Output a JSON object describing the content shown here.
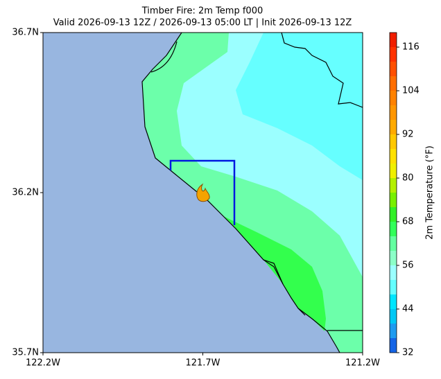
{
  "chart_data": {
    "type": "contour",
    "title": "Timber Fire: 2m Temp f000",
    "subtitle": "Valid 2026-09-13 12Z / 2026-09-13 05:00 LT | Init 2026-09-13 12Z",
    "xlim": [
      -122.2,
      -121.2
    ],
    "xticks": [
      {
        "value": -122.2,
        "label": "122.2W"
      },
      {
        "value": -121.7,
        "label": "121.7W"
      },
      {
        "value": -121.2,
        "label": "121.2W"
      }
    ],
    "ylim": [
      35.7,
      36.7
    ],
    "yticks": [
      {
        "value": 35.7,
        "label": "35.7N"
      },
      {
        "value": 36.2,
        "label": "36.2N"
      },
      {
        "value": 36.7,
        "label": "36.7N"
      }
    ],
    "colorbar": {
      "label": "2m Temperature (°F)",
      "lim": [
        32,
        120
      ],
      "ticks": [
        32,
        44,
        56,
        68,
        80,
        92,
        104,
        116
      ],
      "levels": [
        32,
        36,
        40,
        44,
        48,
        52,
        56,
        60,
        64,
        68,
        72,
        76,
        80,
        84,
        88,
        92,
        96,
        100,
        104,
        108,
        112,
        116,
        120
      ],
      "colors": [
        "#1464e6",
        "#1e9bf0",
        "#00c8f5",
        "#00e6ff",
        "#64ffff",
        "#9bffff",
        "#8cffc8",
        "#64ffa0",
        "#32ff5a",
        "#32f028",
        "#78f000",
        "#b4f000",
        "#f0f000",
        "#ffe100",
        "#ffc800",
        "#ffaa00",
        "#ff9600",
        "#ff8200",
        "#ff6e00",
        "#ff5000",
        "#ff3200",
        "#f01e00"
      ]
    }
  }
}
